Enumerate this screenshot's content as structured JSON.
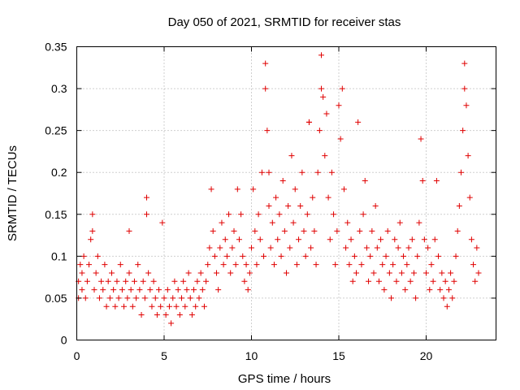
{
  "chart_data": {
    "type": "scatter",
    "title": "Day 050 of 2021, SRMTID for receiver stas",
    "xlabel": "GPS time / hours",
    "ylabel": "SRMTID / TECUs",
    "xlim": [
      0,
      24
    ],
    "ylim": [
      0,
      0.35
    ],
    "xticks": [
      0,
      5,
      10,
      15,
      20
    ],
    "yticks": [
      0,
      0.05,
      0.1,
      0.15,
      0.2,
      0.25,
      0.3,
      0.35
    ],
    "xtick_labels": [
      "0",
      "5",
      "10",
      "15",
      "20"
    ],
    "ytick_labels": [
      "0",
      "0.05",
      "0.1",
      "0.15",
      "0.2",
      "0.25",
      "0.3",
      "0.35"
    ],
    "grid": true,
    "marker": "+",
    "color": "#e00000",
    "series": [
      {
        "name": "SRMTID",
        "points": [
          [
            0.1,
            0.05
          ],
          [
            0.1,
            0.07
          ],
          [
            0.2,
            0.09
          ],
          [
            0.3,
            0.06
          ],
          [
            0.3,
            0.08
          ],
          [
            0.4,
            0.1
          ],
          [
            0.5,
            0.05
          ],
          [
            0.6,
            0.07
          ],
          [
            0.7,
            0.09
          ],
          [
            0.8,
            0.12
          ],
          [
            0.9,
            0.15
          ],
          [
            0.9,
            0.13
          ],
          [
            1.0,
            0.06
          ],
          [
            1.1,
            0.08
          ],
          [
            1.2,
            0.1
          ],
          [
            1.3,
            0.05
          ],
          [
            1.4,
            0.07
          ],
          [
            1.5,
            0.06
          ],
          [
            1.6,
            0.09
          ],
          [
            1.7,
            0.04
          ],
          [
            1.8,
            0.07
          ],
          [
            1.9,
            0.05
          ],
          [
            2.0,
            0.08
          ],
          [
            2.1,
            0.06
          ],
          [
            2.2,
            0.04
          ],
          [
            2.3,
            0.07
          ],
          [
            2.4,
            0.05
          ],
          [
            2.5,
            0.09
          ],
          [
            2.6,
            0.06
          ],
          [
            2.7,
            0.04
          ],
          [
            2.8,
            0.07
          ],
          [
            2.9,
            0.05
          ],
          [
            3.0,
            0.13
          ],
          [
            3.0,
            0.08
          ],
          [
            3.1,
            0.06
          ],
          [
            3.2,
            0.04
          ],
          [
            3.3,
            0.07
          ],
          [
            3.4,
            0.05
          ],
          [
            3.5,
            0.09
          ],
          [
            3.6,
            0.06
          ],
          [
            3.7,
            0.03
          ],
          [
            3.8,
            0.07
          ],
          [
            3.9,
            0.05
          ],
          [
            4.0,
            0.17
          ],
          [
            4.0,
            0.15
          ],
          [
            4.1,
            0.08
          ],
          [
            4.2,
            0.06
          ],
          [
            4.3,
            0.04
          ],
          [
            4.4,
            0.07
          ],
          [
            4.5,
            0.05
          ],
          [
            4.6,
            0.03
          ],
          [
            4.7,
            0.06
          ],
          [
            4.8,
            0.04
          ],
          [
            4.9,
            0.14
          ],
          [
            5.0,
            0.05
          ],
          [
            5.1,
            0.03
          ],
          [
            5.2,
            0.06
          ],
          [
            5.3,
            0.04
          ],
          [
            5.4,
            0.02
          ],
          [
            5.5,
            0.05
          ],
          [
            5.6,
            0.07
          ],
          [
            5.7,
            0.04
          ],
          [
            5.8,
            0.06
          ],
          [
            5.9,
            0.03
          ],
          [
            6.0,
            0.05
          ],
          [
            6.1,
            0.07
          ],
          [
            6.2,
            0.04
          ],
          [
            6.3,
            0.06
          ],
          [
            6.4,
            0.08
          ],
          [
            6.5,
            0.05
          ],
          [
            6.6,
            0.03
          ],
          [
            6.7,
            0.06
          ],
          [
            6.8,
            0.04
          ],
          [
            6.9,
            0.07
          ],
          [
            7.0,
            0.05
          ],
          [
            7.1,
            0.08
          ],
          [
            7.2,
            0.06
          ],
          [
            7.3,
            0.04
          ],
          [
            7.4,
            0.07
          ],
          [
            7.5,
            0.09
          ],
          [
            7.6,
            0.11
          ],
          [
            7.7,
            0.18
          ],
          [
            7.8,
            0.13
          ],
          [
            7.9,
            0.1
          ],
          [
            8.0,
            0.08
          ],
          [
            8.1,
            0.06
          ],
          [
            8.2,
            0.11
          ],
          [
            8.3,
            0.14
          ],
          [
            8.4,
            0.09
          ],
          [
            8.5,
            0.12
          ],
          [
            8.6,
            0.1
          ],
          [
            8.7,
            0.15
          ],
          [
            8.8,
            0.08
          ],
          [
            8.9,
            0.11
          ],
          [
            9.0,
            0.13
          ],
          [
            9.1,
            0.09
          ],
          [
            9.2,
            0.18
          ],
          [
            9.3,
            0.12
          ],
          [
            9.4,
            0.15
          ],
          [
            9.5,
            0.1
          ],
          [
            9.6,
            0.07
          ],
          [
            9.7,
            0.09
          ],
          [
            9.8,
            0.06
          ],
          [
            9.9,
            0.08
          ],
          [
            10.0,
            0.11
          ],
          [
            10.1,
            0.18
          ],
          [
            10.2,
            0.13
          ],
          [
            10.3,
            0.09
          ],
          [
            10.4,
            0.15
          ],
          [
            10.5,
            0.12
          ],
          [
            10.6,
            0.2
          ],
          [
            10.7,
            0.1
          ],
          [
            10.8,
            0.33
          ],
          [
            10.8,
            0.3
          ],
          [
            10.9,
            0.25
          ],
          [
            11.0,
            0.2
          ],
          [
            11.0,
            0.16
          ],
          [
            11.1,
            0.11
          ],
          [
            11.2,
            0.14
          ],
          [
            11.3,
            0.09
          ],
          [
            11.4,
            0.17
          ],
          [
            11.5,
            0.12
          ],
          [
            11.6,
            0.15
          ],
          [
            11.7,
            0.1
          ],
          [
            11.8,
            0.19
          ],
          [
            11.9,
            0.13
          ],
          [
            12.0,
            0.08
          ],
          [
            12.1,
            0.16
          ],
          [
            12.2,
            0.11
          ],
          [
            12.3,
            0.22
          ],
          [
            12.4,
            0.14
          ],
          [
            12.5,
            0.18
          ],
          [
            12.6,
            0.09
          ],
          [
            12.7,
            0.12
          ],
          [
            12.8,
            0.16
          ],
          [
            12.9,
            0.2
          ],
          [
            13.0,
            0.13
          ],
          [
            13.1,
            0.1
          ],
          [
            13.2,
            0.15
          ],
          [
            13.3,
            0.26
          ],
          [
            13.3,
            0.26
          ],
          [
            13.4,
            0.11
          ],
          [
            13.5,
            0.17
          ],
          [
            13.6,
            0.13
          ],
          [
            13.7,
            0.09
          ],
          [
            13.8,
            0.2
          ],
          [
            13.9,
            0.25
          ],
          [
            14.0,
            0.34
          ],
          [
            14.0,
            0.3
          ],
          [
            14.1,
            0.29
          ],
          [
            14.2,
            0.22
          ],
          [
            14.3,
            0.27
          ],
          [
            14.4,
            0.17
          ],
          [
            14.5,
            0.12
          ],
          [
            14.6,
            0.2
          ],
          [
            14.7,
            0.15
          ],
          [
            14.8,
            0.09
          ],
          [
            14.9,
            0.13
          ],
          [
            15.0,
            0.28
          ],
          [
            15.1,
            0.24
          ],
          [
            15.2,
            0.3
          ],
          [
            15.3,
            0.18
          ],
          [
            15.4,
            0.11
          ],
          [
            15.5,
            0.14
          ],
          [
            15.6,
            0.09
          ],
          [
            15.7,
            0.12
          ],
          [
            15.8,
            0.07
          ],
          [
            15.9,
            0.1
          ],
          [
            16.0,
            0.08
          ],
          [
            16.1,
            0.26
          ],
          [
            16.2,
            0.13
          ],
          [
            16.3,
            0.09
          ],
          [
            16.4,
            0.15
          ],
          [
            16.5,
            0.19
          ],
          [
            16.6,
            0.11
          ],
          [
            16.7,
            0.07
          ],
          [
            16.8,
            0.1
          ],
          [
            16.9,
            0.13
          ],
          [
            17.0,
            0.08
          ],
          [
            17.1,
            0.16
          ],
          [
            17.2,
            0.11
          ],
          [
            17.3,
            0.07
          ],
          [
            17.4,
            0.12
          ],
          [
            17.5,
            0.09
          ],
          [
            17.6,
            0.06
          ],
          [
            17.7,
            0.1
          ],
          [
            17.8,
            0.13
          ],
          [
            17.9,
            0.08
          ],
          [
            18.0,
            0.05
          ],
          [
            18.1,
            0.09
          ],
          [
            18.2,
            0.12
          ],
          [
            18.3,
            0.07
          ],
          [
            18.4,
            0.11
          ],
          [
            18.5,
            0.14
          ],
          [
            18.6,
            0.08
          ],
          [
            18.7,
            0.1
          ],
          [
            18.8,
            0.06
          ],
          [
            18.9,
            0.09
          ],
          [
            19.0,
            0.11
          ],
          [
            19.1,
            0.07
          ],
          [
            19.2,
            0.12
          ],
          [
            19.3,
            0.08
          ],
          [
            19.4,
            0.05
          ],
          [
            19.5,
            0.1
          ],
          [
            19.6,
            0.14
          ],
          [
            19.7,
            0.24
          ],
          [
            19.8,
            0.19
          ],
          [
            19.9,
            0.12
          ],
          [
            20.0,
            0.08
          ],
          [
            20.1,
            0.11
          ],
          [
            20.2,
            0.06
          ],
          [
            20.3,
            0.09
          ],
          [
            20.4,
            0.07
          ],
          [
            20.5,
            0.12
          ],
          [
            20.6,
            0.19
          ],
          [
            20.7,
            0.1
          ],
          [
            20.8,
            0.06
          ],
          [
            20.9,
            0.08
          ],
          [
            21.0,
            0.05
          ],
          [
            21.1,
            0.07
          ],
          [
            21.2,
            0.04
          ],
          [
            21.3,
            0.06
          ],
          [
            21.4,
            0.08
          ],
          [
            21.5,
            0.05
          ],
          [
            21.6,
            0.07
          ],
          [
            21.7,
            0.1
          ],
          [
            21.8,
            0.13
          ],
          [
            21.9,
            0.16
          ],
          [
            22.0,
            0.2
          ],
          [
            22.1,
            0.25
          ],
          [
            22.2,
            0.33
          ],
          [
            22.2,
            0.3
          ],
          [
            22.3,
            0.28
          ],
          [
            22.4,
            0.22
          ],
          [
            22.5,
            0.17
          ],
          [
            22.6,
            0.12
          ],
          [
            22.7,
            0.09
          ],
          [
            22.8,
            0.07
          ],
          [
            22.9,
            0.11
          ],
          [
            23.0,
            0.08
          ]
        ]
      }
    ]
  }
}
